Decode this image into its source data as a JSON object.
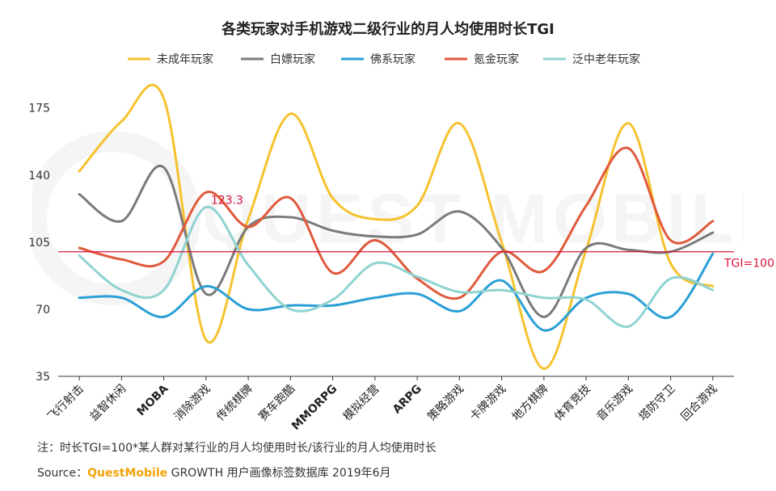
{
  "chart_data": {
    "type": "line",
    "title": "各类玩家对手机游戏二级行业的月人均使用时长TGI",
    "categories": [
      "飞行射击",
      "益智休闲",
      "MOBA",
      "消除游戏",
      "传统棋牌",
      "赛车跑酷",
      "MMORPG",
      "模拟经营",
      "ARPG",
      "策略游戏",
      "卡牌游戏",
      "地方棋牌",
      "体育竞技",
      "音乐游戏",
      "塔防守卫",
      "回合游戏"
    ],
    "ylim": [
      35,
      185
    ],
    "yticks": [
      35,
      70,
      105,
      140,
      175
    ],
    "grid": false,
    "legend_position": "top",
    "series": [
      {
        "name": "未成年玩家",
        "color": "#f5c22e",
        "values": [
          142,
          168,
          180,
          54,
          117,
          172,
          128,
          117,
          124,
          167,
          105,
          39,
          101,
          167,
          94,
          82
        ]
      },
      {
        "name": "白嫖玩家",
        "color": "#7a7a7a",
        "values": [
          130,
          116,
          144,
          78,
          113,
          118,
          111,
          108,
          109,
          121,
          102,
          66,
          102,
          101,
          100,
          110
        ]
      },
      {
        "name": "佛系玩家",
        "color": "#2a9fd6",
        "values": [
          76,
          76,
          66,
          82,
          70,
          72,
          72,
          76,
          78,
          69,
          85,
          59,
          76,
          78,
          66,
          99
        ]
      },
      {
        "name": "氪金玩家",
        "color": "#e05a3c",
        "values": [
          102,
          96,
          95,
          131,
          113,
          128,
          89,
          106,
          86,
          76,
          100,
          90,
          124,
          154,
          106,
          116
        ]
      },
      {
        "name": "泛中老年玩家",
        "color": "#8fd3d1",
        "values": [
          98,
          80,
          80,
          123.3,
          93,
          70,
          75,
          94,
          87,
          79,
          80,
          76,
          75,
          61,
          86,
          80
        ]
      }
    ],
    "reference_line": {
      "value": 100,
      "label": "TGI=100",
      "color": "#d9143c"
    },
    "annotation": {
      "text": "123.3",
      "category": "消除游戏",
      "value": 123.3,
      "color": "#d9143c"
    }
  },
  "footer": {
    "note": "注：时长TGI=100*某人群对某行业的月人均使用时长/该行业的月人均使用时长",
    "source_prefix": "Source：",
    "source_brand": "QuestMobile",
    "source_rest": " GROWTH 用户画像标签数据库 2019年6月"
  },
  "watermark": {
    "text": "QUEST MOBILE"
  }
}
